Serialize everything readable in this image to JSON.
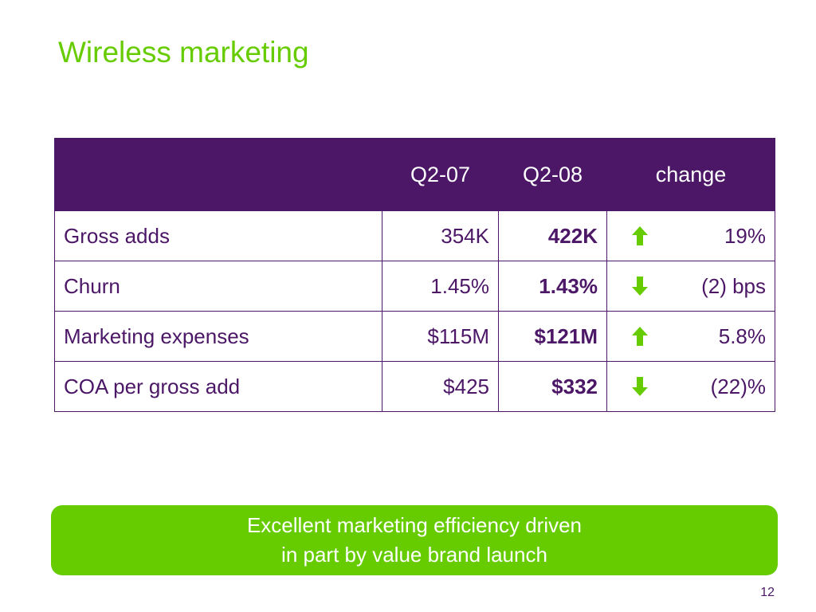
{
  "title": "Wireless marketing",
  "table": {
    "headers": [
      "",
      "Q2-07",
      "Q2-08",
      "change"
    ],
    "rows": [
      {
        "metric": "Gross adds",
        "q2_07": "354K",
        "q2_08": "422K",
        "direction": "up-arrow-icon",
        "change": "19%"
      },
      {
        "metric": "Churn",
        "q2_07": "1.45%",
        "q2_08": "1.43%",
        "direction": "down-arrow-icon",
        "change": "(2) bps"
      },
      {
        "metric": "Marketing expenses",
        "q2_07": "$115M",
        "q2_08": "$121M",
        "direction": "up-arrow-icon",
        "change": "5.8%"
      },
      {
        "metric": "COA per gross add",
        "q2_07": "$425",
        "q2_08": "$332",
        "direction": "down-arrow-icon",
        "change": "(22)%"
      }
    ]
  },
  "callout": {
    "line1": "Excellent marketing efficiency driven",
    "line2": "in part by value brand launch"
  },
  "page_number": "12",
  "colors": {
    "title_green": "#66cc00",
    "header_purple": "#4b1766",
    "arrow_green": "#66cc00",
    "callout_green": "#66cc00"
  }
}
